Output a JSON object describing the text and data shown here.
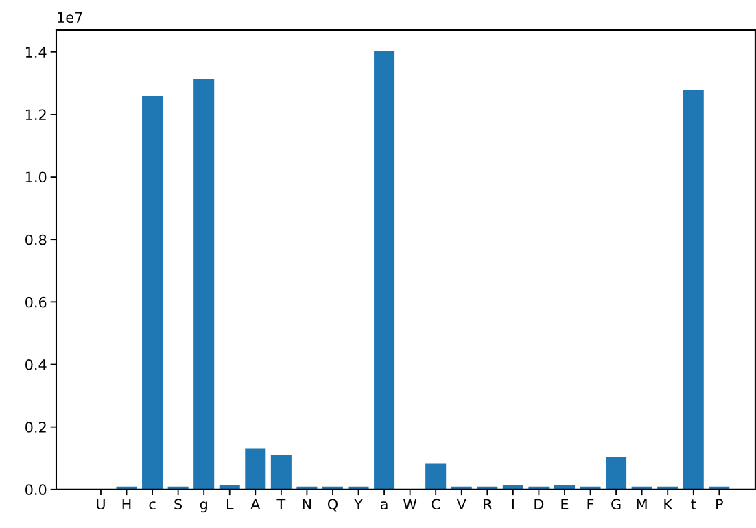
{
  "chart_data": {
    "type": "bar",
    "categories": [
      "U",
      "H",
      "c",
      "S",
      "g",
      "L",
      "A",
      "T",
      "N",
      "Q",
      "Y",
      "a",
      "W",
      "C",
      "V",
      "R",
      "I",
      "D",
      "E",
      "F",
      "G",
      "M",
      "K",
      "t",
      "P"
    ],
    "values": [
      0,
      0.009,
      1.259,
      0.009,
      1.314,
      0.015,
      0.13,
      0.11,
      0.009,
      0.009,
      0.009,
      1.402,
      0,
      0.084,
      0.009,
      0.009,
      0.013,
      0.009,
      0.013,
      0.009,
      0.105,
      0.009,
      0.009,
      1.279,
      0.009
    ],
    "color": "#1f77b4",
    "ylim": [
      0,
      1.47
    ],
    "yticks": [
      {
        "value": 0,
        "label": "0.0"
      },
      {
        "value": 0.2,
        "label": "0.2"
      },
      {
        "value": 0.4,
        "label": "0.4"
      },
      {
        "value": 0.6,
        "label": "0.6"
      },
      {
        "value": 0.8,
        "label": "0.8"
      },
      {
        "value": 1.0,
        "label": "1.0"
      },
      {
        "value": 1.2,
        "label": "1.2"
      },
      {
        "value": 1.4,
        "label": "1.4"
      }
    ],
    "annotations": [
      "1e7"
    ],
    "grid": false
  }
}
